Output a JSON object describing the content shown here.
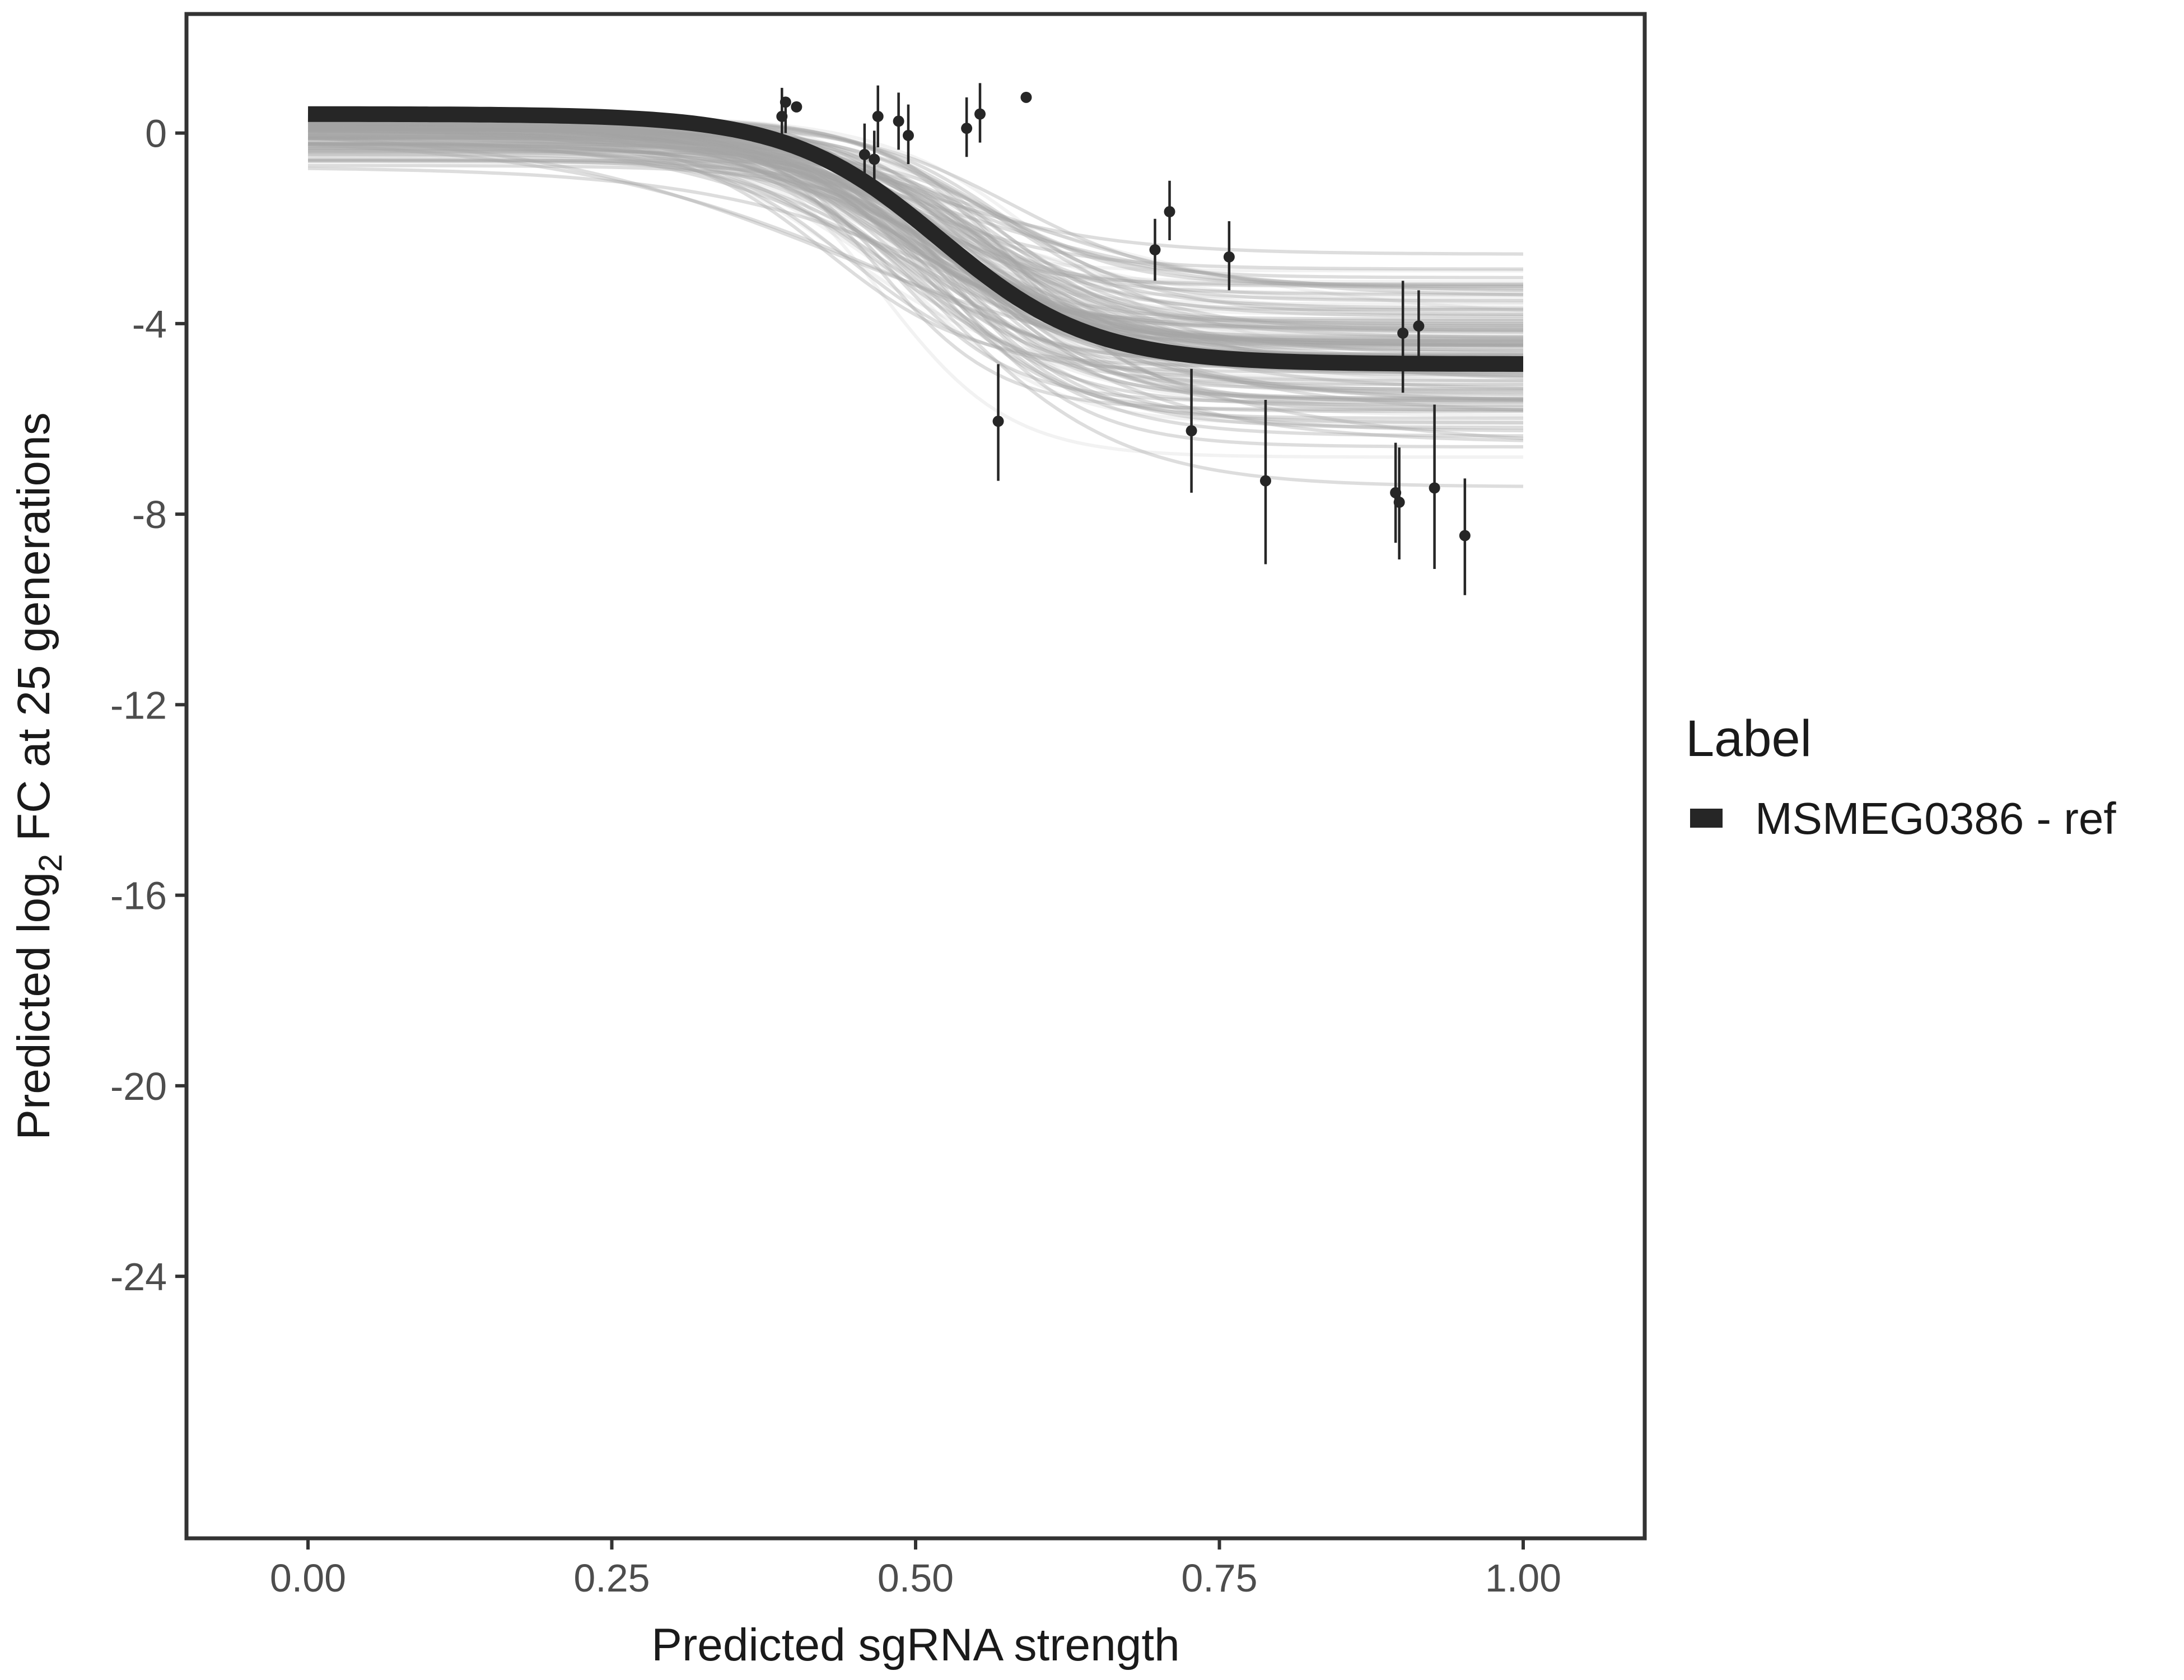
{
  "chart_data": {
    "type": "line",
    "title": "",
    "xlabel": "Predicted sgRNA strength",
    "ylabel_parts": [
      "Predicted  log",
      "2",
      " FC at 25 generations"
    ],
    "xlim": [
      -0.1,
      1.1
    ],
    "ylim": [
      -29.5,
      2.5
    ],
    "x_ticks": [
      0.0,
      0.25,
      0.5,
      0.75,
      1.0
    ],
    "x_tick_labels": [
      "0.00",
      "0.25",
      "0.50",
      "0.75",
      "1.00"
    ],
    "y_ticks": [
      0,
      -4,
      -8,
      -12,
      -16,
      -20,
      -24
    ],
    "y_tick_labels": [
      "0",
      "-4",
      "-8",
      "-12",
      "-16",
      "-20",
      "-24"
    ],
    "grid": false,
    "legend": {
      "title": "Label",
      "position": "right",
      "entries": [
        {
          "name": "MSMEG0386 - ref",
          "color": "#262626"
        }
      ]
    },
    "fit_curve": {
      "name": "MSMEG0386 - ref",
      "color": "#262626",
      "model": "logistic",
      "top": 0.4,
      "bottom": -4.85,
      "midpoint": 0.52,
      "slope": 16,
      "x_range": [
        0.0,
        1.0
      ]
    },
    "posterior_band": {
      "color": "#a6a6a6",
      "draws": 140,
      "x_range": [
        0.0,
        1.0
      ]
    },
    "points": [
      {
        "x": 0.39,
        "y": 0.35,
        "lo": -0.35,
        "hi": 0.95
      },
      {
        "x": 0.393,
        "y": 0.65,
        "lo": 0.0,
        "hi": 0.75
      },
      {
        "x": 0.402,
        "y": 0.55,
        "lo": 0.55,
        "hi": 0.55
      },
      {
        "x": 0.458,
        "y": -0.45,
        "lo": -1.05,
        "hi": 0.2
      },
      {
        "x": 0.466,
        "y": -0.55,
        "lo": -1.0,
        "hi": 0.05
      },
      {
        "x": 0.469,
        "y": 0.35,
        "lo": -0.3,
        "hi": 1.0
      },
      {
        "x": 0.486,
        "y": 0.25,
        "lo": -0.35,
        "hi": 0.85
      },
      {
        "x": 0.494,
        "y": -0.05,
        "lo": -0.65,
        "hi": 0.6
      },
      {
        "x": 0.542,
        "y": 0.1,
        "lo": -0.5,
        "hi": 0.75
      },
      {
        "x": 0.553,
        "y": 0.4,
        "lo": -0.2,
        "hi": 1.05
      },
      {
        "x": 0.591,
        "y": 0.75,
        "lo": 0.75,
        "hi": 0.75
      },
      {
        "x": 0.568,
        "y": -6.05,
        "lo": -7.3,
        "hi": -4.85
      },
      {
        "x": 0.697,
        "y": -2.45,
        "lo": -3.1,
        "hi": -1.8
      },
      {
        "x": 0.709,
        "y": -1.65,
        "lo": -2.25,
        "hi": -1.0
      },
      {
        "x": 0.727,
        "y": -6.25,
        "lo": -7.55,
        "hi": -4.95
      },
      {
        "x": 0.758,
        "y": -2.6,
        "lo": -3.3,
        "hi": -1.85
      },
      {
        "x": 0.788,
        "y": -7.3,
        "lo": -9.05,
        "hi": -5.6
      },
      {
        "x": 0.895,
        "y": -7.55,
        "lo": -8.6,
        "hi": -6.5
      },
      {
        "x": 0.898,
        "y": -7.75,
        "lo": -8.95,
        "hi": -6.6
      },
      {
        "x": 0.901,
        "y": -4.2,
        "lo": -5.45,
        "hi": -3.1
      },
      {
        "x": 0.914,
        "y": -4.05,
        "lo": -4.85,
        "hi": -3.3
      },
      {
        "x": 0.927,
        "y": -7.45,
        "lo": -9.15,
        "hi": -5.7
      },
      {
        "x": 0.952,
        "y": -8.45,
        "lo": -9.7,
        "hi": -7.25
      }
    ]
  }
}
